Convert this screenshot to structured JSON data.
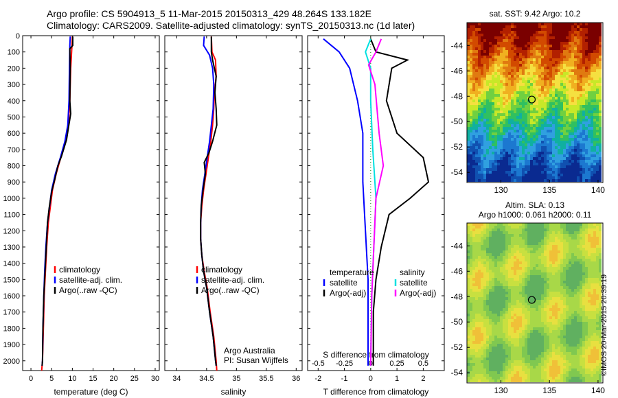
{
  "header": {
    "line1": "Argo profile: CS 5904913_5 11-Mar-2015 20150313_429 48.264S 133.182E",
    "line2": "Climatology: CARS2009. Satellite-adjusted climatology: synTS_20150313.nc (1d later)"
  },
  "colors": {
    "climatology": "#ff0000",
    "satellite": "#0000ff",
    "argo": "#000000",
    "sat_salinity": "#00e0e0",
    "argo_salinity_adj": "#ff00ff"
  },
  "depth_ticks": [
    "0",
    "100",
    "200",
    "300",
    "400",
    "500",
    "600",
    "700",
    "800",
    "900",
    "1000",
    "1100",
    "1200",
    "1300",
    "1400",
    "1500",
    "1600",
    "1700",
    "1800",
    "1900",
    "2000"
  ],
  "chart_data": [
    {
      "type": "line",
      "name": "temperature",
      "xlabel": "temperature (deg C)",
      "x_ticks": [
        "0",
        "5",
        "10",
        "15",
        "20",
        "25",
        "30"
      ],
      "xlim": [
        -2,
        31
      ],
      "ylim": [
        2060,
        0
      ],
      "legend": [
        "climatology",
        "satellite-adj. clim.",
        "Argo(..raw -QC)"
      ],
      "legend_position": "lower-center",
      "series": [
        {
          "name": "climatology",
          "color": "#ff0000",
          "points": [
            [
              10.0,
              5
            ],
            [
              9.9,
              60
            ],
            [
              9.6,
              200
            ],
            [
              9.4,
              400
            ],
            [
              9.0,
              550
            ],
            [
              8.3,
              650
            ],
            [
              7.2,
              750
            ],
            [
              6.1,
              850
            ],
            [
              5.2,
              950
            ],
            [
              4.7,
              1050
            ],
            [
              4.2,
              1150
            ],
            [
              3.8,
              1300
            ],
            [
              3.5,
              1450
            ],
            [
              3.2,
              1600
            ],
            [
              3.0,
              1800
            ],
            [
              2.8,
              2000
            ],
            [
              2.6,
              2060
            ]
          ]
        },
        {
          "name": "satellite-adj. clim.",
          "color": "#0000ff",
          "points": [
            [
              9.5,
              5
            ],
            [
              9.4,
              60
            ],
            [
              9.3,
              200
            ],
            [
              9.2,
              400
            ],
            [
              8.9,
              550
            ],
            [
              8.2,
              650
            ],
            [
              7.1,
              750
            ],
            [
              5.9,
              850
            ],
            [
              5.0,
              950
            ],
            [
              4.5,
              1050
            ],
            [
              4.0,
              1150
            ],
            [
              3.6,
              1300
            ],
            [
              3.3,
              1450
            ],
            [
              3.1,
              1600
            ],
            [
              2.9,
              1800
            ],
            [
              2.8,
              2000
            ],
            [
              2.7,
              2030
            ]
          ]
        },
        {
          "name": "Argo(..raw -QC)",
          "color": "#000000",
          "points": [
            [
              10.1,
              5
            ],
            [
              10.1,
              60
            ],
            [
              9.4,
              80
            ],
            [
              9.5,
              200
            ],
            [
              9.4,
              400
            ],
            [
              9.6,
              480
            ],
            [
              9.1,
              560
            ],
            [
              8.6,
              640
            ],
            [
              7.4,
              740
            ],
            [
              6.5,
              800
            ],
            [
              5.8,
              880
            ],
            [
              5.0,
              960
            ],
            [
              4.4,
              1060
            ],
            [
              4.0,
              1150
            ],
            [
              3.8,
              1250
            ],
            [
              3.4,
              1450
            ],
            [
              3.1,
              1600
            ],
            [
              2.9,
              1800
            ],
            [
              2.8,
              2000
            ],
            [
              2.7,
              2030
            ]
          ]
        }
      ]
    },
    {
      "type": "line",
      "name": "salinity",
      "xlabel": "salinity",
      "x_ticks": [
        "34",
        "34.5",
        "35",
        "35.5",
        "36"
      ],
      "xlim": [
        33.8,
        36.1
      ],
      "ylim": [
        2060,
        0
      ],
      "legend": [
        "climatology",
        "satellite-adj. clim.",
        "Argo(..raw -QC)"
      ],
      "annotation": [
        "Argo Australia",
        "PI: Susan Wijffels"
      ],
      "series": [
        {
          "name": "climatology",
          "color": "#ff0000",
          "points": [
            [
              34.58,
              5
            ],
            [
              34.59,
              100
            ],
            [
              34.65,
              150
            ],
            [
              34.66,
              250
            ],
            [
              34.63,
              350
            ],
            [
              34.62,
              450
            ],
            [
              34.6,
              550
            ],
            [
              34.57,
              650
            ],
            [
              34.53,
              750
            ],
            [
              34.49,
              850
            ],
            [
              34.45,
              950
            ],
            [
              34.42,
              1050
            ],
            [
              34.4,
              1150
            ],
            [
              34.4,
              1250
            ],
            [
              34.42,
              1350
            ],
            [
              34.46,
              1450
            ],
            [
              34.51,
              1550
            ],
            [
              34.56,
              1700
            ],
            [
              34.62,
              1850
            ],
            [
              34.66,
              2000
            ],
            [
              34.67,
              2060
            ]
          ]
        },
        {
          "name": "satellite-adj. clim.",
          "color": "#0000ff",
          "points": [
            [
              34.46,
              5
            ],
            [
              34.45,
              60
            ],
            [
              34.55,
              120
            ],
            [
              34.6,
              200
            ],
            [
              34.62,
              300
            ],
            [
              34.61,
              450
            ],
            [
              34.58,
              550
            ],
            [
              34.55,
              650
            ],
            [
              34.51,
              750
            ],
            [
              34.47,
              850
            ],
            [
              34.43,
              950
            ],
            [
              34.41,
              1050
            ],
            [
              34.4,
              1150
            ],
            [
              34.4,
              1250
            ],
            [
              34.42,
              1350
            ],
            [
              34.45,
              1450
            ],
            [
              34.5,
              1550
            ],
            [
              34.55,
              1700
            ],
            [
              34.61,
              1850
            ],
            [
              34.65,
              2000
            ],
            [
              34.66,
              2030
            ]
          ]
        },
        {
          "name": "Argo(..raw -QC)",
          "color": "#000000",
          "points": [
            [
              34.58,
              5
            ],
            [
              34.58,
              100
            ],
            [
              34.6,
              150
            ],
            [
              34.66,
              250
            ],
            [
              34.64,
              350
            ],
            [
              34.66,
              450
            ],
            [
              34.67,
              550
            ],
            [
              34.6,
              650
            ],
            [
              34.54,
              720
            ],
            [
              34.46,
              780
            ],
            [
              34.48,
              850
            ],
            [
              34.44,
              950
            ],
            [
              34.41,
              1050
            ],
            [
              34.4,
              1150
            ],
            [
              34.4,
              1250
            ],
            [
              34.42,
              1350
            ],
            [
              34.45,
              1450
            ],
            [
              34.5,
              1550
            ],
            [
              34.55,
              1700
            ],
            [
              34.61,
              1850
            ],
            [
              34.65,
              2000
            ],
            [
              34.66,
              2030
            ]
          ]
        }
      ]
    },
    {
      "type": "line",
      "name": "difference",
      "xlabel": "T difference from climatology",
      "x_ticks": [
        "-2",
        "-1",
        "0",
        "1",
        "2"
      ],
      "xlim": [
        -2.4,
        2.8
      ],
      "top_xlabel": "S difference from climatology",
      "top_ticks": [
        "-0.5",
        "-0.25",
        "0",
        "0.25",
        "0.5"
      ],
      "top_xlim": [
        -0.6,
        0.7
      ],
      "ylim": [
        2060,
        0
      ],
      "legend_left": {
        "title": "temperature",
        "items": [
          "satellite",
          "Argo(-adj)"
        ]
      },
      "legend_right": {
        "title": "salinity",
        "items": [
          "satellite",
          "Argo(-adj)"
        ]
      },
      "series": [
        {
          "name": "temperature satellite",
          "color": "#0000ff",
          "points": [
            [
              -1.8,
              20
            ],
            [
              -1.2,
              100
            ],
            [
              -0.8,
              200
            ],
            [
              -0.5,
              400
            ],
            [
              -0.3,
              600
            ],
            [
              -0.3,
              900
            ],
            [
              -0.2,
              1200
            ],
            [
              -0.1,
              1500
            ],
            [
              -0.1,
              1800
            ],
            [
              -0.1,
              2030
            ]
          ]
        },
        {
          "name": "temperature Argo(-adj)",
          "color": "#000000",
          "points": [
            [
              0,
              20
            ],
            [
              0.2,
              100
            ],
            [
              1.4,
              150
            ],
            [
              0.8,
              200
            ],
            [
              0.6,
              400
            ],
            [
              1.0,
              600
            ],
            [
              2.0,
              750
            ],
            [
              2.2,
              900
            ],
            [
              1.5,
              1000
            ],
            [
              0.7,
              1100
            ],
            [
              0.4,
              1300
            ],
            [
              0.2,
              1500
            ],
            [
              0.1,
              1700
            ],
            [
              0.1,
              2030
            ]
          ]
        },
        {
          "name": "salinity satellite",
          "color": "#00e0e0",
          "points": [
            [
              0.0,
              20
            ],
            [
              -0.05,
              100
            ],
            [
              0.0,
              200
            ],
            [
              0.0,
              400
            ],
            [
              0.02,
              700
            ],
            [
              0.05,
              1000
            ],
            [
              0.03,
              1300
            ],
            [
              0.01,
              1600
            ],
            [
              0.0,
              2030
            ]
          ]
        },
        {
          "name": "salinity Argo(-adj)",
          "color": "#ff00ff",
          "points": [
            [
              0.1,
              20
            ],
            [
              0.05,
              100
            ],
            [
              -0.02,
              180
            ],
            [
              0.04,
              300
            ],
            [
              0.08,
              600
            ],
            [
              0.12,
              800
            ],
            [
              0.05,
              1000
            ],
            [
              0.03,
              1300
            ],
            [
              0.01,
              1600
            ],
            [
              0.0,
              2030
            ]
          ]
        }
      ]
    },
    {
      "type": "heatmap",
      "name": "sst-map",
      "title": "sat. SST: 9.42  Argo: 10.2",
      "x_ticks": [
        "130",
        "135",
        "140"
      ],
      "y_ticks": [
        "-44",
        "-46",
        "-48",
        "-50",
        "-52",
        "-54"
      ],
      "xlim": [
        126.5,
        140.5
      ],
      "ylim": [
        -54.8,
        -42.2
      ],
      "marker": {
        "lon": 133.18,
        "lat": -48.26
      }
    },
    {
      "type": "heatmap",
      "name": "sla-map",
      "title": "Altim. SLA: 0.13",
      "subtitle": "Argo h1000: 0.061  h2000: 0.11",
      "x_ticks": [
        "130",
        "135",
        "140"
      ],
      "y_ticks": [
        "-44",
        "-46",
        "-48",
        "-50",
        "-52",
        "-54"
      ],
      "xlim": [
        126.5,
        140.5
      ],
      "ylim": [
        -54.8,
        -42.2
      ],
      "marker": {
        "lon": 133.18,
        "lat": -48.26
      }
    }
  ],
  "copyright": "©IMOS 20-Mar-2015 20:39:19"
}
